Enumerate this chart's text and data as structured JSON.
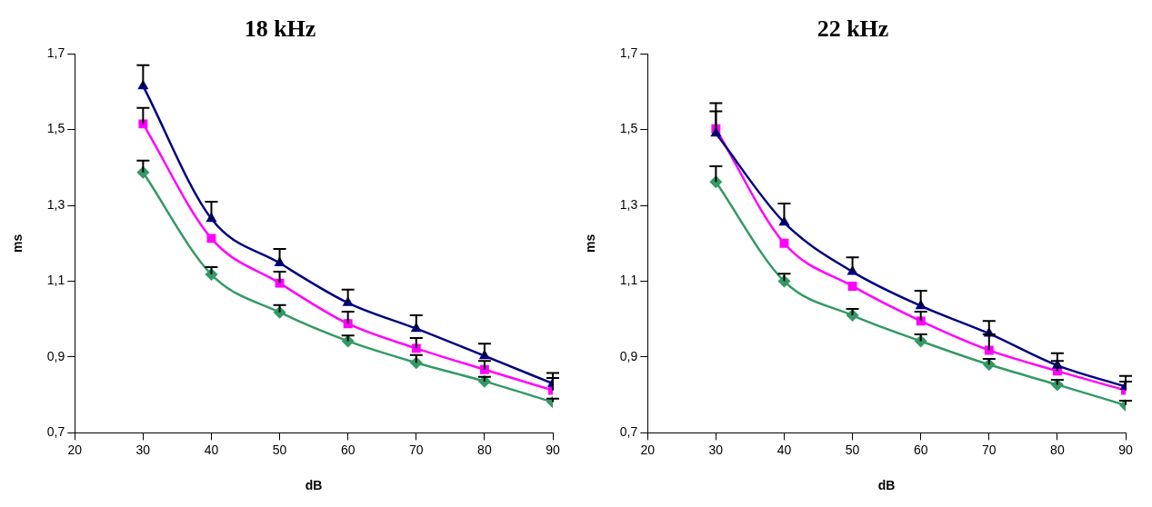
{
  "chart_data": [
    {
      "type": "line",
      "title": "18 kHz",
      "xlabel": "dB",
      "ylabel": "ms",
      "x": [
        30,
        40,
        50,
        60,
        70,
        80,
        90
      ],
      "xlim": [
        20,
        90
      ],
      "xticks": [
        20,
        30,
        40,
        50,
        60,
        70,
        80,
        90
      ],
      "ylim": [
        0.7,
        1.7
      ],
      "yticks": [
        {
          "value": 0.7,
          "label": "0,7"
        },
        {
          "value": 0.9,
          "label": "0,9"
        },
        {
          "value": 1.1,
          "label": "1,1"
        },
        {
          "value": 1.3,
          "label": "1,3"
        },
        {
          "value": 1.5,
          "label": "1,5"
        },
        {
          "value": 1.7,
          "label": "1,7"
        }
      ],
      "series": [
        {
          "color": "#339966",
          "marker": "diamond",
          "values": [
            1.387,
            1.118,
            1.018,
            0.942,
            0.885,
            0.836,
            0.781
          ],
          "errors": [
            [
              1.387,
              1.418
            ],
            [
              1.118,
              1.137
            ],
            [
              1.018,
              1.037
            ],
            [
              0.942,
              0.957
            ],
            [
              0.885,
              0.905
            ],
            [
              0.836,
              0.848
            ],
            [
              0.781,
              0.79
            ]
          ]
        },
        {
          "color": "#ff00ff",
          "marker": "square",
          "values": [
            1.515,
            1.213,
            1.095,
            0.988,
            0.923,
            0.867,
            0.812
          ],
          "errors": [
            [
              1.515,
              1.557
            ],
            null,
            [
              1.095,
              1.125
            ],
            [
              0.988,
              1.02
            ],
            [
              0.923,
              0.95
            ],
            [
              0.867,
              0.89
            ],
            [
              0.812,
              0.845
            ]
          ]
        },
        {
          "color": "#000080",
          "marker": "triangle",
          "values": [
            1.615,
            1.265,
            1.148,
            1.043,
            0.975,
            0.903,
            0.83
          ],
          "errors": [
            [
              1.615,
              1.67
            ],
            [
              1.265,
              1.31
            ],
            [
              1.148,
              1.185
            ],
            [
              1.043,
              1.078
            ],
            [
              0.975,
              1.01
            ],
            [
              0.903,
              0.935
            ],
            [
              0.83,
              0.858
            ]
          ]
        }
      ]
    },
    {
      "type": "line",
      "title": "22 kHz",
      "xlabel": "dB",
      "ylabel": "ms",
      "x": [
        30,
        40,
        50,
        60,
        70,
        80,
        90
      ],
      "xlim": [
        20,
        90
      ],
      "xticks": [
        20,
        30,
        40,
        50,
        60,
        70,
        80,
        90
      ],
      "ylim": [
        0.7,
        1.7
      ],
      "yticks": [
        {
          "value": 0.7,
          "label": "0,7"
        },
        {
          "value": 0.9,
          "label": "0,9"
        },
        {
          "value": 1.1,
          "label": "1,1"
        },
        {
          "value": 1.3,
          "label": "1,3"
        },
        {
          "value": 1.5,
          "label": "1,5"
        },
        {
          "value": 1.7,
          "label": "1,7"
        }
      ],
      "series": [
        {
          "color": "#339966",
          "marker": "diamond",
          "values": [
            1.362,
            1.1,
            1.01,
            0.942,
            0.88,
            0.827,
            0.773
          ],
          "errors": [
            [
              1.362,
              1.403
            ],
            [
              1.1,
              1.12
            ],
            [
              1.01,
              1.027
            ],
            [
              0.942,
              0.96
            ],
            [
              0.88,
              0.895
            ],
            [
              0.827,
              0.84
            ],
            [
              0.773,
              0.785
            ]
          ]
        },
        {
          "color": "#ff00ff",
          "marker": "square",
          "values": [
            1.502,
            1.2,
            1.087,
            0.995,
            0.918,
            0.863,
            0.812
          ],
          "errors": [
            [
              1.502,
              1.548
            ],
            null,
            null,
            [
              0.995,
              1.02
            ],
            [
              0.918,
              0.96
            ],
            [
              0.863,
              0.89
            ],
            [
              0.812,
              0.835
            ]
          ]
        },
        {
          "color": "#000080",
          "marker": "triangle",
          "values": [
            1.49,
            1.255,
            1.125,
            1.035,
            0.962,
            0.878,
            0.822
          ],
          "errors": [
            [
              1.49,
              1.57
            ],
            [
              1.255,
              1.305
            ],
            [
              1.125,
              1.163
            ],
            [
              1.035,
              1.075
            ],
            [
              0.962,
              0.995
            ],
            [
              0.878,
              0.91
            ],
            [
              0.822,
              0.85
            ]
          ]
        }
      ]
    }
  ]
}
